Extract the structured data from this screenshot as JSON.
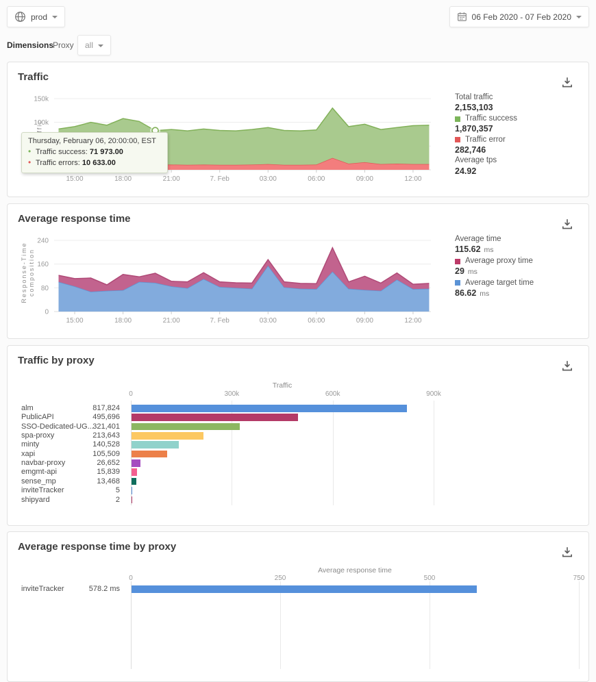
{
  "header": {
    "environment": "prod",
    "date_range": "06 Feb 2020 - 07 Feb 2020"
  },
  "dimensions": {
    "label": "Dimensions",
    "dimension": "Proxy",
    "selected": "all"
  },
  "cards": {
    "traffic": {
      "title": "Traffic",
      "stats": [
        {
          "label": "Total traffic",
          "value": "2,153,103"
        },
        {
          "label": "Traffic success",
          "value": "1,870,357",
          "swatch": "#7cb55a"
        },
        {
          "label": "Traffic error",
          "value": "282,746",
          "swatch": "#e25757"
        },
        {
          "label": "Average tps",
          "value": "24.92"
        }
      ]
    },
    "response": {
      "title": "Average response time",
      "stats": [
        {
          "label": "Average time",
          "value": "115.62",
          "unit": "ms"
        },
        {
          "label": "Average proxy time",
          "value": "29",
          "unit": "ms",
          "swatch": "#bc3a68"
        },
        {
          "label": "Average target time",
          "value": "86.62",
          "unit": "ms",
          "swatch": "#5b93d6"
        }
      ]
    },
    "traffic_by_proxy": {
      "title": "Traffic by proxy"
    },
    "response_by_proxy": {
      "title": "Average response time by proxy"
    }
  },
  "chart_data": [
    {
      "id": "traffic",
      "type": "area",
      "stacked": true,
      "title": "Traffic",
      "ylabel": "Traffic",
      "ylim": [
        0,
        150000
      ],
      "x": [
        "14:00",
        "15:00",
        "16:00",
        "17:00",
        "18:00",
        "19:00",
        "20:00",
        "21:00",
        "22:00",
        "23:00",
        "7. Feb",
        "01:00",
        "02:00",
        "03:00",
        "04:00",
        "05:00",
        "06:00",
        "07:00",
        "08:00",
        "09:00",
        "10:00",
        "11:00",
        "12:00",
        "13:00"
      ],
      "xticks": {
        "indices": [
          1,
          4,
          7,
          10,
          13,
          16,
          19,
          22
        ],
        "labels": [
          "15:00",
          "18:00",
          "21:00",
          "7. Feb",
          "03:00",
          "06:00",
          "09:00",
          "12:00"
        ]
      },
      "yticks": {
        "values": [
          0,
          50000,
          100000,
          150000
        ],
        "labels": [
          "0",
          "50k",
          "100k",
          "150k"
        ]
      },
      "series": [
        {
          "name": "Traffic errors",
          "line": "#e25757",
          "fill": "#f37d7d",
          "values": [
            11000,
            11500,
            12000,
            11000,
            12500,
            12000,
            10633,
            11000,
            10500,
            11000,
            10500,
            10500,
            11000,
            12000,
            10500,
            10500,
            11000,
            25000,
            13000,
            16000,
            12000,
            13000,
            12000,
            12000
          ]
        },
        {
          "name": "Traffic success",
          "line": "#82b159",
          "fill": "#a9ca8e",
          "values": [
            75000,
            79500,
            88000,
            83000,
            95500,
            90000,
            71973,
            74000,
            71500,
            75000,
            72500,
            71500,
            74000,
            77000,
            72500,
            71500,
            73000,
            105000,
            78000,
            80000,
            73000,
            76000,
            81000,
            82000
          ]
        }
      ],
      "tooltip": {
        "index": 6,
        "title": "Thursday, February 06, 20:00:00, EST",
        "rows": [
          {
            "label": "Traffic success:",
            "value": "71 973.00",
            "color": "#7cb55a"
          },
          {
            "label": "Traffic errors:",
            "value": "10 633.00",
            "color": "#e25757"
          }
        ]
      }
    },
    {
      "id": "response",
      "type": "area",
      "stacked": true,
      "title": "Average response time",
      "ylabel": "Response-Time composition",
      "ylim": [
        0,
        240
      ],
      "x": [
        "14:00",
        "15:00",
        "16:00",
        "17:00",
        "18:00",
        "19:00",
        "20:00",
        "21:00",
        "22:00",
        "23:00",
        "7. Feb",
        "01:00",
        "02:00",
        "03:00",
        "04:00",
        "05:00",
        "06:00",
        "07:00",
        "08:00",
        "09:00",
        "10:00",
        "11:00",
        "12:00",
        "13:00"
      ],
      "xticks": {
        "indices": [
          1,
          4,
          7,
          10,
          13,
          16,
          19,
          22
        ],
        "labels": [
          "15:00",
          "18:00",
          "21:00",
          "7. Feb",
          "03:00",
          "06:00",
          "09:00",
          "12:00"
        ]
      },
      "yticks": {
        "values": [
          0,
          80,
          160,
          240
        ],
        "labels": [
          "0",
          "80",
          "160",
          "240"
        ]
      },
      "series": [
        {
          "name": "Average target time",
          "line": "#5f94d2",
          "fill": "#82abdd",
          "values": [
            100,
            85,
            67,
            70,
            72,
            100,
            97,
            85,
            79,
            110,
            83,
            80,
            77,
            155,
            82,
            77,
            76,
            135,
            77,
            73,
            70,
            108,
            76,
            77
          ]
        },
        {
          "name": "Average proxy time",
          "line": "#b04a77",
          "fill": "#c2638e",
          "values": [
            22,
            26,
            46,
            20,
            53,
            17,
            32,
            17,
            21,
            21,
            17,
            17,
            19,
            20,
            18,
            18,
            18,
            80,
            23,
            46,
            26,
            22,
            16,
            18
          ]
        }
      ]
    },
    {
      "id": "traffic_by_proxy",
      "type": "bar",
      "title": "Traffic by proxy",
      "xlabel": "Traffic",
      "xlim": [
        0,
        900000
      ],
      "xticks": {
        "values": [
          0,
          300000,
          600000,
          900000
        ],
        "labels": [
          "0",
          "300k",
          "600k",
          "900k"
        ]
      },
      "rows": [
        {
          "label": "alm",
          "value": 817824,
          "value_label": "817,824",
          "color": "#5590db"
        },
        {
          "label": "PublicAPI",
          "value": 495696,
          "value_label": "495,696",
          "color": "#b43a67"
        },
        {
          "label": "SSO-Dedicated-UG...",
          "value": 321401,
          "value_label": "321,401",
          "color": "#8db761"
        },
        {
          "label": "spa-proxy",
          "value": 213643,
          "value_label": "213,643",
          "color": "#fcc862"
        },
        {
          "label": "minty",
          "value": 140528,
          "value_label": "140,528",
          "color": "#90d2cb"
        },
        {
          "label": "xapi",
          "value": 105509,
          "value_label": "105,509",
          "color": "#ec8049"
        },
        {
          "label": "navbar-proxy",
          "value": 26652,
          "value_label": "26,652",
          "color": "#a54cc0"
        },
        {
          "label": "emgmt-api",
          "value": 15839,
          "value_label": "15,839",
          "color": "#f45f90"
        },
        {
          "label": "sense_mp",
          "value": 13468,
          "value_label": "13,468",
          "color": "#0f6e5d"
        },
        {
          "label": "inviteTracker",
          "value": 5,
          "value_label": "5",
          "color": "#5590db"
        },
        {
          "label": "shipyard",
          "value": 2,
          "value_label": "2",
          "color": "#b43a67"
        }
      ]
    },
    {
      "id": "response_by_proxy",
      "type": "bar",
      "title": "Average response time by proxy",
      "xlabel": "Average response time",
      "xlim": [
        0,
        750
      ],
      "xticks": {
        "values": [
          0,
          250,
          500,
          750
        ],
        "labels": [
          "0",
          "250",
          "500",
          "750"
        ]
      },
      "rows": [
        {
          "label": "inviteTracker",
          "value": 578.2,
          "value_label": "578.2 ms",
          "color": "#5590db"
        }
      ]
    }
  ]
}
